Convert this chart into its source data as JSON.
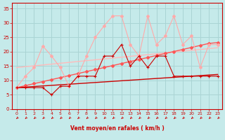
{
  "xlabel": "Vent moyen/en rafales ( km/h )",
  "xlim": [
    -0.5,
    23.5
  ],
  "ylim": [
    0,
    37
  ],
  "yticks": [
    0,
    5,
    10,
    15,
    20,
    25,
    30,
    35
  ],
  "xticks": [
    0,
    1,
    2,
    3,
    4,
    5,
    6,
    7,
    8,
    9,
    10,
    11,
    12,
    13,
    14,
    15,
    16,
    17,
    18,
    19,
    20,
    21,
    22,
    23
  ],
  "bg_color": "#c5eaea",
  "grid_color": "#aad4d4",
  "x": [
    0,
    1,
    2,
    3,
    4,
    5,
    6,
    7,
    8,
    9,
    10,
    11,
    12,
    13,
    14,
    15,
    16,
    17,
    18,
    19,
    20,
    21,
    22,
    23
  ],
  "line_jagged_dark": [
    7.5,
    7.5,
    7.5,
    7.5,
    5.0,
    8.0,
    8.0,
    11.5,
    11.5,
    11.5,
    18.5,
    18.5,
    22.5,
    15.0,
    18.5,
    14.5,
    18.5,
    18.5,
    11.5,
    11.5,
    11.5,
    11.5,
    11.5,
    11.5
  ],
  "line_jagged_light": [
    7.5,
    11.5,
    14.5,
    22.0,
    18.5,
    14.5,
    8.0,
    11.5,
    18.5,
    25.0,
    29.0,
    32.5,
    32.5,
    22.5,
    18.5,
    32.5,
    22.5,
    25.5,
    32.5,
    22.5,
    25.5,
    14.5,
    22.5,
    22.5
  ],
  "line_trend_med": [
    7.5,
    8.2,
    8.9,
    9.6,
    10.3,
    11.0,
    11.7,
    12.4,
    13.1,
    13.8,
    14.5,
    15.2,
    15.9,
    16.6,
    17.3,
    18.0,
    18.7,
    19.4,
    20.1,
    20.8,
    21.5,
    22.2,
    22.9,
    23.2
  ],
  "line_trend_upper": [
    14.5,
    14.8,
    15.1,
    15.4,
    15.7,
    16.0,
    16.3,
    16.6,
    16.9,
    17.2,
    17.5,
    17.8,
    18.1,
    18.4,
    18.7,
    19.0,
    19.3,
    19.6,
    19.9,
    20.2,
    20.5,
    20.8,
    21.1,
    21.4
  ],
  "line_trend_lower": [
    7.5,
    7.7,
    7.9,
    8.1,
    8.3,
    8.5,
    8.7,
    8.9,
    9.1,
    9.3,
    9.5,
    9.7,
    9.9,
    10.1,
    10.3,
    10.5,
    10.7,
    10.9,
    11.1,
    11.3,
    11.5,
    11.7,
    11.9,
    12.1
  ],
  "color_dark_red": "#cc0000",
  "color_med_red": "#ff5555",
  "color_light_red": "#ffaaaa",
  "color_pale_red": "#ffbbbb"
}
